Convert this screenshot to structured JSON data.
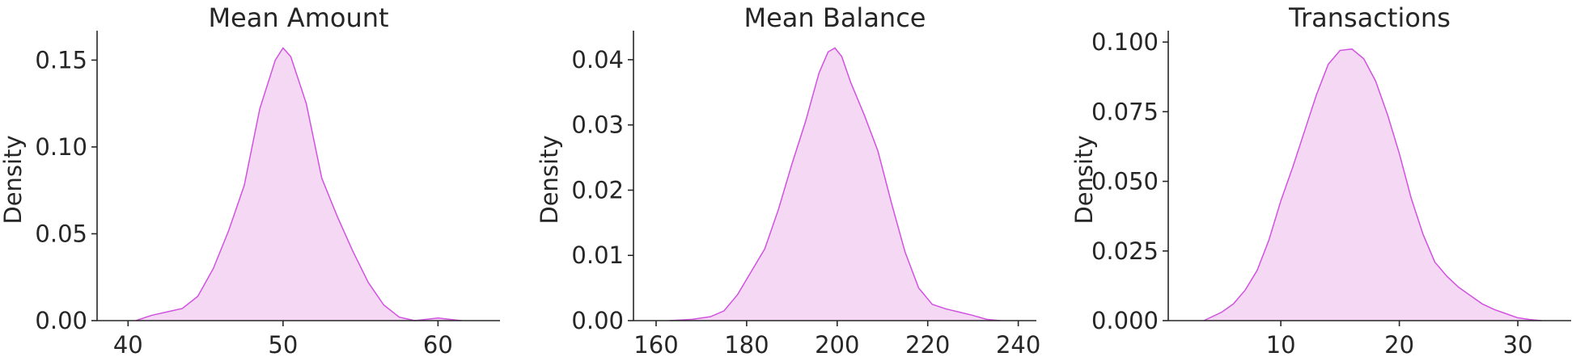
{
  "chart_data": [
    {
      "type": "area",
      "title": "Mean Amount",
      "xlabel": "",
      "ylabel": "Density",
      "xlim": [
        38,
        64
      ],
      "ylim": [
        0,
        0.166
      ],
      "xticks": [
        40,
        50,
        60
      ],
      "yticks": [
        0.0,
        0.05,
        0.1,
        0.15
      ],
      "ytick_labels": [
        "0.00",
        "0.05",
        "0.10",
        "0.15"
      ],
      "x": [
        40.5,
        41.5,
        42.5,
        43.5,
        44.5,
        45.5,
        46.5,
        47.5,
        48.5,
        49.5,
        50.0,
        50.5,
        51.5,
        52.5,
        53.5,
        54.5,
        55.5,
        56.5,
        57.5,
        58.5,
        59.5,
        60.0,
        60.5,
        61.5
      ],
      "y": [
        0.0,
        0.003,
        0.005,
        0.007,
        0.014,
        0.03,
        0.052,
        0.078,
        0.122,
        0.15,
        0.157,
        0.152,
        0.125,
        0.082,
        0.06,
        0.04,
        0.022,
        0.009,
        0.002,
        0.0,
        0.001,
        0.0015,
        0.001,
        0.0
      ],
      "grid": false,
      "line_color": "#d152e0",
      "fill_color": "#f5d9f4"
    },
    {
      "type": "area",
      "title": "Mean Balance",
      "xlabel": "",
      "ylabel": "Density",
      "xlim": [
        155,
        244
      ],
      "ylim": [
        0,
        0.0442
      ],
      "xticks": [
        160,
        180,
        200,
        220,
        240
      ],
      "yticks": [
        0.0,
        0.01,
        0.02,
        0.03,
        0.04
      ],
      "ytick_labels": [
        "0.00",
        "0.01",
        "0.02",
        "0.03",
        "0.04"
      ],
      "x": [
        163,
        168,
        172,
        175,
        178,
        181,
        184,
        187,
        190,
        193,
        196,
        198,
        199.5,
        201,
        203,
        206,
        209,
        212,
        215,
        218,
        221,
        224,
        227,
        230,
        233,
        236
      ],
      "y": [
        0.0,
        0.0002,
        0.0006,
        0.0015,
        0.004,
        0.0075,
        0.011,
        0.017,
        0.024,
        0.0305,
        0.038,
        0.0412,
        0.0418,
        0.0405,
        0.0365,
        0.0315,
        0.026,
        0.018,
        0.0105,
        0.005,
        0.0025,
        0.0018,
        0.0013,
        0.0008,
        0.0002,
        0.0
      ],
      "grid": false,
      "line_color": "#d152e0",
      "fill_color": "#f5d9f4"
    },
    {
      "type": "area",
      "title": "Transactions",
      "xlabel": "",
      "ylabel": "Density",
      "xlim": [
        0.5,
        34.5
      ],
      "ylim": [
        0,
        0.1035
      ],
      "xticks": [
        10,
        20,
        30
      ],
      "yticks": [
        0.0,
        0.025,
        0.05,
        0.075,
        0.1
      ],
      "ytick_labels": [
        "0.000",
        "0.025",
        "0.050",
        "0.075",
        "0.100"
      ],
      "x": [
        3.5,
        5,
        6,
        7,
        8,
        9,
        10,
        11,
        12,
        13,
        14,
        15,
        16,
        17,
        18,
        19,
        20,
        21,
        22,
        23,
        24,
        25,
        26,
        27,
        28,
        29,
        30,
        31,
        32
      ],
      "y": [
        0.0,
        0.003,
        0.006,
        0.011,
        0.018,
        0.029,
        0.043,
        0.055,
        0.068,
        0.081,
        0.092,
        0.097,
        0.0975,
        0.094,
        0.086,
        0.074,
        0.06,
        0.044,
        0.031,
        0.021,
        0.016,
        0.012,
        0.009,
        0.006,
        0.004,
        0.0025,
        0.001,
        0.0004,
        0.0
      ],
      "grid": false,
      "line_color": "#d152e0",
      "fill_color": "#f5d9f4"
    }
  ]
}
